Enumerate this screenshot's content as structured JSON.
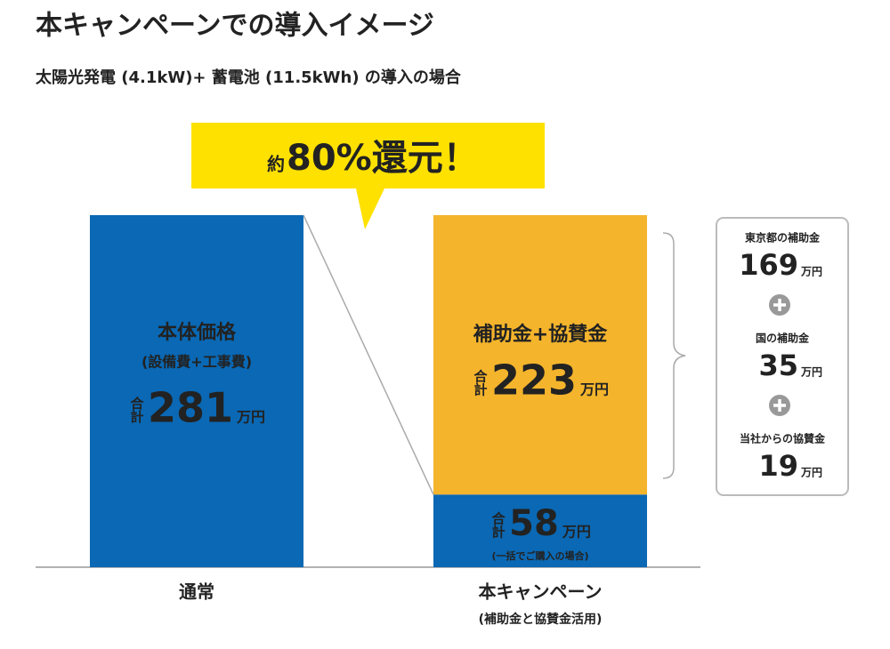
{
  "title": "本キャンペーンでの導入イメージ",
  "subtitle": "太陽光発電 (4.1kW)+ 蓄電池 (11.5kWh) の導入の場合",
  "callout": {
    "prefix": "約",
    "text": "80%還元！"
  },
  "chart_data": {
    "type": "bar",
    "stacked": true,
    "total_label": "合計",
    "unit": "万円",
    "bars": [
      {
        "category": "通常",
        "segments": [
          {
            "label": "本体価格",
            "note": "(設備費+工事費)",
            "value": 281,
            "color": "#0a68b4",
            "text_color": "#ffffff"
          }
        ]
      },
      {
        "category": "本キャンペーン",
        "note": "(補助金と協賛金活用)",
        "segments": [
          {
            "value": 58,
            "note": "(一括でご購入の場合)",
            "color": "#0a68b4",
            "text_color": "#ffe100"
          },
          {
            "label": "補助金+協賛金",
            "value": 223,
            "color": "#f4b42c",
            "text_color": "#222222"
          }
        ]
      }
    ]
  },
  "breakdown": [
    {
      "label": "東京都の補助金",
      "value": 169
    },
    {
      "label": "国の補助金",
      "value": 35
    },
    {
      "label": "当社からの協賛金",
      "value": 19
    }
  ]
}
